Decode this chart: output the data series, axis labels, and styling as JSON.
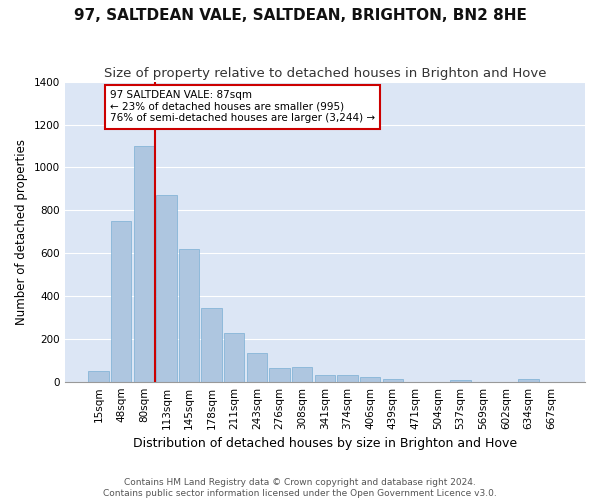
{
  "title": "97, SALTDEAN VALE, SALTDEAN, BRIGHTON, BN2 8HE",
  "subtitle": "Size of property relative to detached houses in Brighton and Hove",
  "xlabel": "Distribution of detached houses by size in Brighton and Hove",
  "ylabel": "Number of detached properties",
  "footer_line1": "Contains HM Land Registry data © Crown copyright and database right 2024.",
  "footer_line2": "Contains public sector information licensed under the Open Government Licence v3.0.",
  "annotation_title": "97 SALTDEAN VALE: 87sqm",
  "annotation_line1": "← 23% of detached houses are smaller (995)",
  "annotation_line2": "76% of semi-detached houses are larger (3,244) →",
  "bar_labels": [
    "15sqm",
    "48sqm",
    "80sqm",
    "113sqm",
    "145sqm",
    "178sqm",
    "211sqm",
    "243sqm",
    "276sqm",
    "308sqm",
    "341sqm",
    "374sqm",
    "406sqm",
    "439sqm",
    "471sqm",
    "504sqm",
    "537sqm",
    "569sqm",
    "602sqm",
    "634sqm",
    "667sqm"
  ],
  "bar_values": [
    50,
    750,
    1100,
    870,
    620,
    345,
    225,
    135,
    62,
    70,
    30,
    32,
    22,
    12,
    0,
    0,
    10,
    0,
    0,
    12,
    0
  ],
  "bar_color": "#aec6e0",
  "bar_edge_color": "#7aafd4",
  "vline_color": "#cc0000",
  "vline_x_index": 2,
  "annotation_box_color": "#cc0000",
  "ylim": [
    0,
    1400
  ],
  "yticks": [
    0,
    200,
    400,
    600,
    800,
    1000,
    1200,
    1400
  ],
  "background_color": "#dce6f5",
  "grid_color": "#ffffff",
  "fig_facecolor": "#ffffff",
  "title_fontsize": 11,
  "subtitle_fontsize": 9.5,
  "xlabel_fontsize": 9,
  "ylabel_fontsize": 8.5,
  "tick_fontsize": 7.5,
  "annotation_fontsize": 7.5,
  "footer_fontsize": 6.5
}
